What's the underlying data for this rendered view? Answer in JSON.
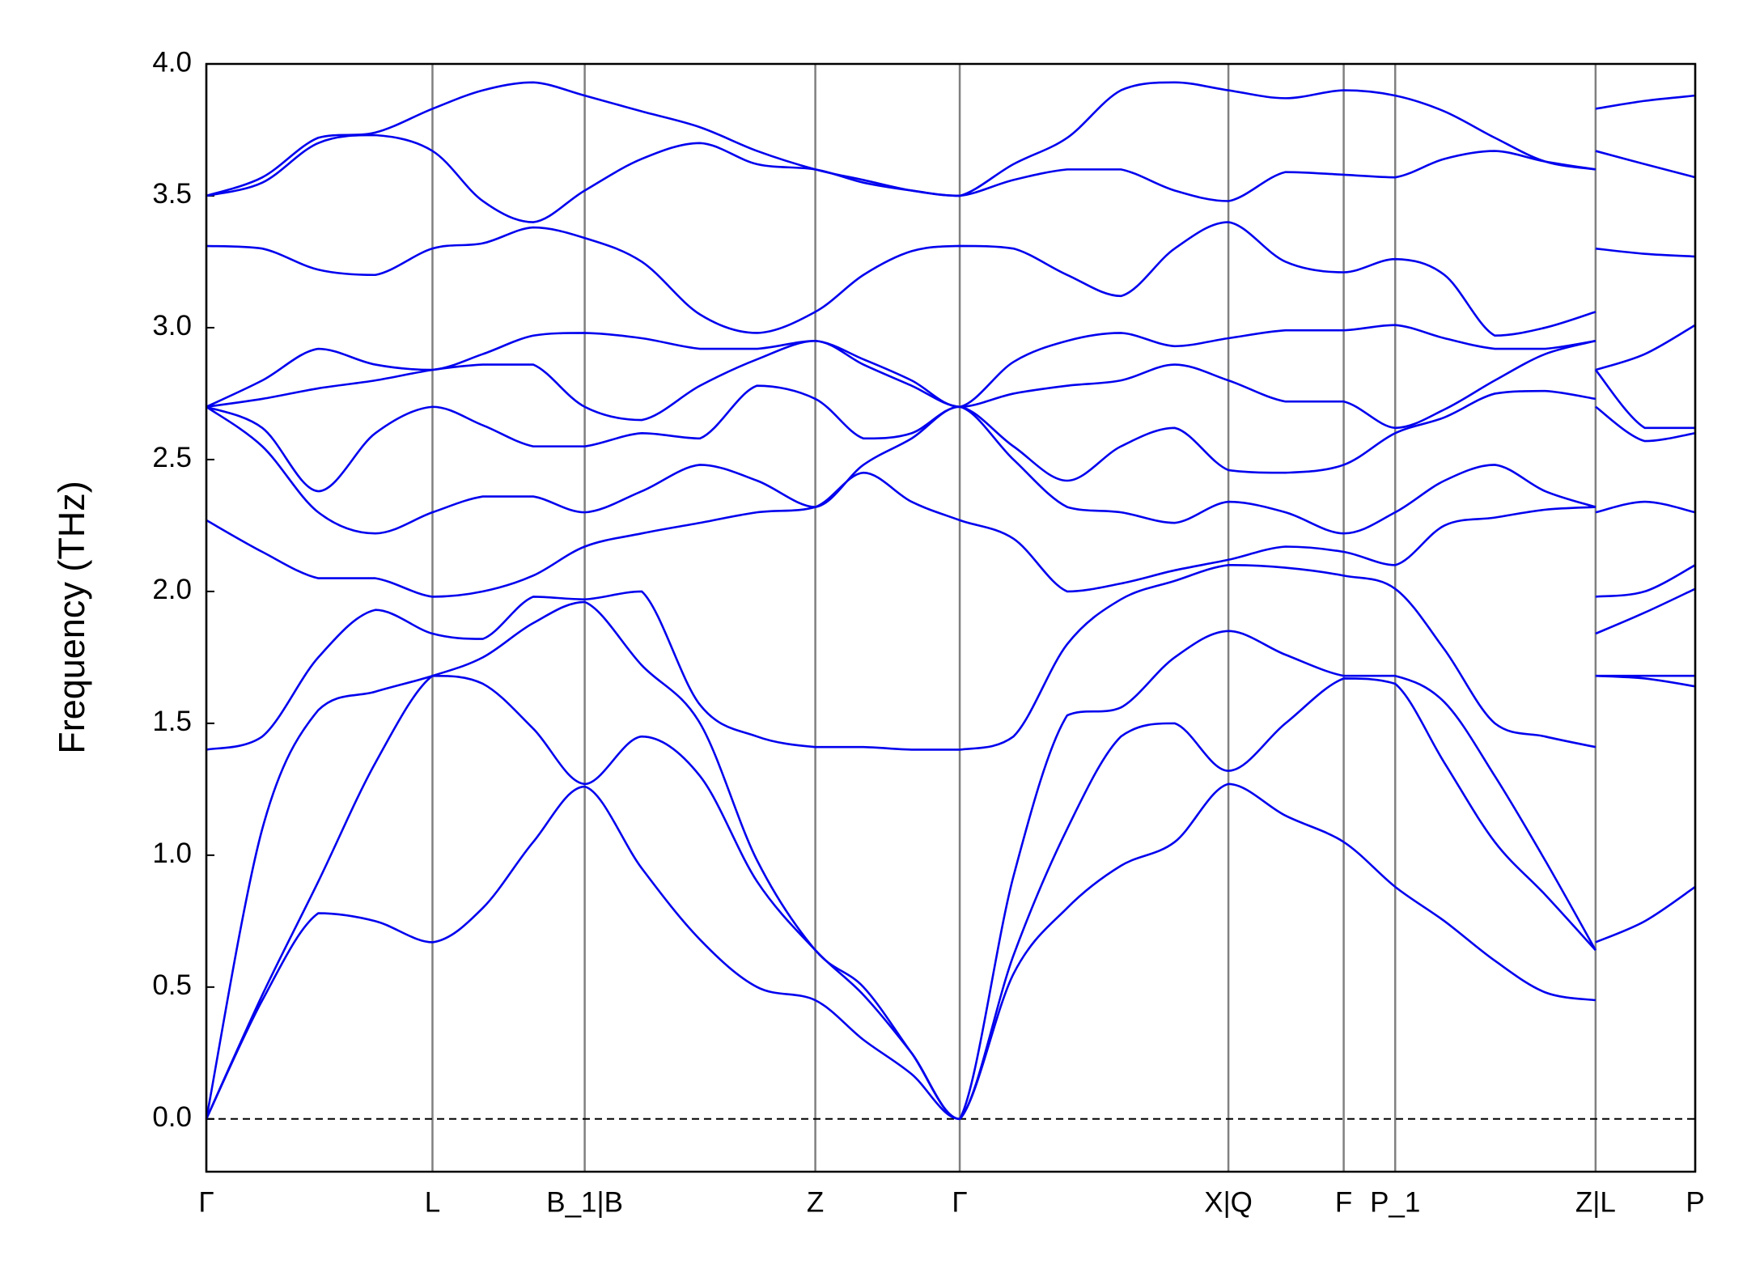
{
  "chart_data": {
    "type": "line",
    "y_label": "Frequency (THz)",
    "x": [
      0,
      0.05,
      0.1,
      0.151,
      0.202,
      0.247,
      0.292,
      0.338,
      0.389,
      0.441,
      0.492,
      0.544,
      0.587,
      0.63,
      0.673,
      0.721,
      0.769,
      0.817,
      0.865,
      0.913,
      0.964,
      1.016,
      1.062,
      1.106,
      1.151,
      1.196,
      1.241,
      1.241,
      1.241,
      1.285,
      1.33
    ],
    "xlim": [
      0,
      1.33
    ],
    "xticks": [
      {
        "value": 0,
        "label": "Γ"
      },
      {
        "value": 0.202,
        "label": "L"
      },
      {
        "value": 0.338,
        "label": "B_1|B"
      },
      {
        "value": 0.544,
        "label": "Z"
      },
      {
        "value": 0.673,
        "label": "Γ"
      },
      {
        "value": 0.913,
        "label": "X|Q"
      },
      {
        "value": 1.016,
        "label": "F"
      },
      {
        "value": 1.062,
        "label": "P_1"
      },
      {
        "value": 1.241,
        "label": "Z|L"
      },
      {
        "value": 1.33,
        "label": "P"
      }
    ],
    "ylim": [
      -0.2,
      4.0
    ],
    "yticks": [
      {
        "value": 0,
        "label": "0.0"
      },
      0.5,
      {
        "value": 1,
        "label": "1.0"
      },
      1.5,
      {
        "value": 2,
        "label": "2.0"
      },
      2.5,
      {
        "value": 3,
        "label": "3.0"
      },
      3.5,
      {
        "value": 4,
        "label": "4.0"
      }
    ],
    "grid": true,
    "series": [
      {
        "color": "#0000ee",
        "values": [
          0,
          0.45,
          0.78,
          0.75,
          0.67,
          0.8,
          1.05,
          1.26,
          0.95,
          0.68,
          0.5,
          0.45,
          0.3,
          0.17,
          0,
          0.55,
          0.8,
          0.96,
          1.05,
          1.27,
          1.15,
          1.05,
          0.88,
          0.75,
          0.6,
          0.48,
          0.45,
          null,
          0.67,
          0.75,
          0.88
        ]
      },
      {
        "color": "#0000ee",
        "values": [
          0,
          0.47,
          0.9,
          1.35,
          1.68,
          1.65,
          1.48,
          1.27,
          1.45,
          1.3,
          0.9,
          0.64,
          0.47,
          0.25,
          0,
          0.62,
          1.1,
          1.45,
          1.5,
          1.32,
          1.5,
          1.67,
          1.65,
          1.35,
          1.05,
          0.85,
          0.64,
          null,
          1.68,
          1.67,
          1.64
        ]
      },
      {
        "color": "#0000ee",
        "values": [
          0,
          1.1,
          1.55,
          1.62,
          1.68,
          1.75,
          1.88,
          1.96,
          1.72,
          1.5,
          0.98,
          0.64,
          0.5,
          0.25,
          0,
          0.92,
          1.53,
          1.56,
          1.75,
          1.85,
          1.76,
          1.68,
          1.68,
          1.58,
          1.3,
          0.98,
          0.64,
          null,
          1.68,
          1.68,
          1.68
        ]
      },
      {
        "color": "#0000ee",
        "values": [
          1.4,
          1.45,
          1.75,
          1.93,
          1.84,
          1.82,
          1.98,
          1.97,
          2.0,
          1.57,
          1.45,
          1.41,
          1.41,
          1.4,
          1.4,
          1.45,
          1.8,
          1.97,
          2.04,
          2.1,
          2.09,
          2.06,
          2.01,
          1.78,
          1.5,
          1.45,
          1.41,
          null,
          1.84,
          1.92,
          2.01
        ]
      },
      {
        "color": "#0000ee",
        "values": [
          2.27,
          2.15,
          2.05,
          2.05,
          1.98,
          2.0,
          2.06,
          2.17,
          2.22,
          2.26,
          2.3,
          2.32,
          2.45,
          2.34,
          2.27,
          2.2,
          2.0,
          2.03,
          2.08,
          2.12,
          2.17,
          2.15,
          2.1,
          2.25,
          2.28,
          2.31,
          2.32,
          null,
          1.98,
          2.0,
          2.1
        ]
      },
      {
        "color": "#0000ee",
        "values": [
          2.7,
          2.55,
          2.3,
          2.22,
          2.3,
          2.36,
          2.36,
          2.3,
          2.38,
          2.48,
          2.42,
          2.32,
          2.48,
          2.58,
          2.7,
          2.5,
          2.32,
          2.3,
          2.26,
          2.34,
          2.3,
          2.22,
          2.3,
          2.42,
          2.48,
          2.38,
          2.32,
          null,
          2.3,
          2.34,
          2.3
        ]
      },
      {
        "color": "#0000ee",
        "values": [
          2.7,
          2.62,
          2.38,
          2.6,
          2.7,
          2.63,
          2.55,
          2.55,
          2.6,
          2.58,
          2.78,
          2.73,
          2.58,
          2.6,
          2.7,
          2.55,
          2.42,
          2.55,
          2.62,
          2.46,
          2.45,
          2.48,
          2.6,
          2.66,
          2.75,
          2.76,
          2.73,
          null,
          2.7,
          2.57,
          2.6
        ]
      },
      {
        "color": "#0000ee",
        "values": [
          2.7,
          2.73,
          2.77,
          2.8,
          2.84,
          2.86,
          2.86,
          2.7,
          2.65,
          2.78,
          2.88,
          2.95,
          2.86,
          2.78,
          2.7,
          2.75,
          2.78,
          2.8,
          2.86,
          2.8,
          2.72,
          2.72,
          2.62,
          2.69,
          2.8,
          2.9,
          2.95,
          null,
          2.84,
          2.62,
          2.62
        ]
      },
      {
        "color": "#0000ee",
        "values": [
          2.7,
          2.8,
          2.92,
          2.86,
          2.84,
          2.9,
          2.97,
          2.98,
          2.96,
          2.92,
          2.92,
          2.95,
          2.88,
          2.8,
          2.7,
          2.87,
          2.95,
          2.98,
          2.93,
          2.96,
          2.99,
          2.99,
          3.01,
          2.96,
          2.92,
          2.92,
          2.95,
          null,
          2.84,
          2.9,
          3.01
        ]
      },
      {
        "color": "#0000ee",
        "values": [
          3.31,
          3.3,
          3.22,
          3.2,
          3.3,
          3.32,
          3.38,
          3.34,
          3.25,
          3.05,
          2.98,
          3.06,
          3.2,
          3.29,
          3.31,
          3.3,
          3.2,
          3.12,
          3.3,
          3.4,
          3.25,
          3.21,
          3.26,
          3.2,
          2.97,
          3.0,
          3.06,
          null,
          3.3,
          3.28,
          3.27
        ]
      },
      {
        "color": "#0000ee",
        "values": [
          3.5,
          3.55,
          3.7,
          3.73,
          3.67,
          3.48,
          3.4,
          3.52,
          3.64,
          3.7,
          3.62,
          3.6,
          3.55,
          3.52,
          3.5,
          3.56,
          3.6,
          3.6,
          3.52,
          3.48,
          3.59,
          3.58,
          3.57,
          3.64,
          3.67,
          3.63,
          3.6,
          null,
          3.67,
          3.62,
          3.57
        ]
      },
      {
        "color": "#0000ee",
        "values": [
          3.5,
          3.57,
          3.72,
          3.74,
          3.83,
          3.9,
          3.93,
          3.88,
          3.82,
          3.76,
          3.67,
          3.6,
          3.56,
          3.52,
          3.5,
          3.62,
          3.72,
          3.9,
          3.93,
          3.9,
          3.87,
          3.9,
          3.88,
          3.82,
          3.72,
          3.63,
          3.6,
          null,
          3.83,
          3.86,
          3.88
        ]
      }
    ]
  }
}
